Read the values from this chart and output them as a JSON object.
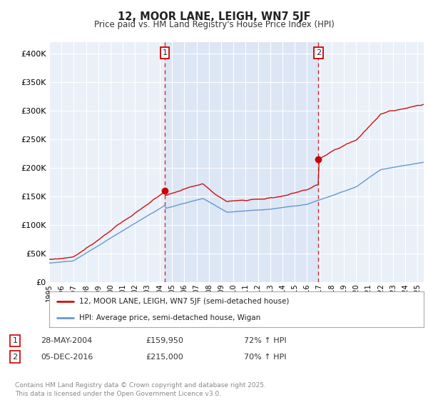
{
  "title": "12, MOOR LANE, LEIGH, WN7 5JF",
  "subtitle": "Price paid vs. HM Land Registry's House Price Index (HPI)",
  "background_color": "#ffffff",
  "plot_bg_color": "#dce6f5",
  "plot_bg_outside_color": "#eaf0f8",
  "grid_color": "#ffffff",
  "hpi_line_color": "#6699cc",
  "price_line_color": "#cc1111",
  "sale_marker_color": "#cc0000",
  "sale1_x": 2004.41,
  "sale1_price": 159950,
  "sale2_x": 2016.92,
  "sale2_price": 215000,
  "annotation1_text": "28-MAY-2004",
  "annotation1_price": "£159,950",
  "annotation1_hpi": "72% ↑ HPI",
  "annotation2_text": "05-DEC-2016",
  "annotation2_price": "£215,000",
  "annotation2_hpi": "70% ↑ HPI",
  "legend1": "12, MOOR LANE, LEIGH, WN7 5JF (semi-detached house)",
  "legend2": "HPI: Average price, semi-detached house, Wigan",
  "footer": "Contains HM Land Registry data © Crown copyright and database right 2025.\nThis data is licensed under the Open Government Licence v3.0.",
  "ylim": [
    0,
    420000
  ],
  "yticks": [
    0,
    50000,
    100000,
    150000,
    200000,
    250000,
    300000,
    350000,
    400000
  ],
  "xmin": 1995,
  "xmax": 2025.5
}
